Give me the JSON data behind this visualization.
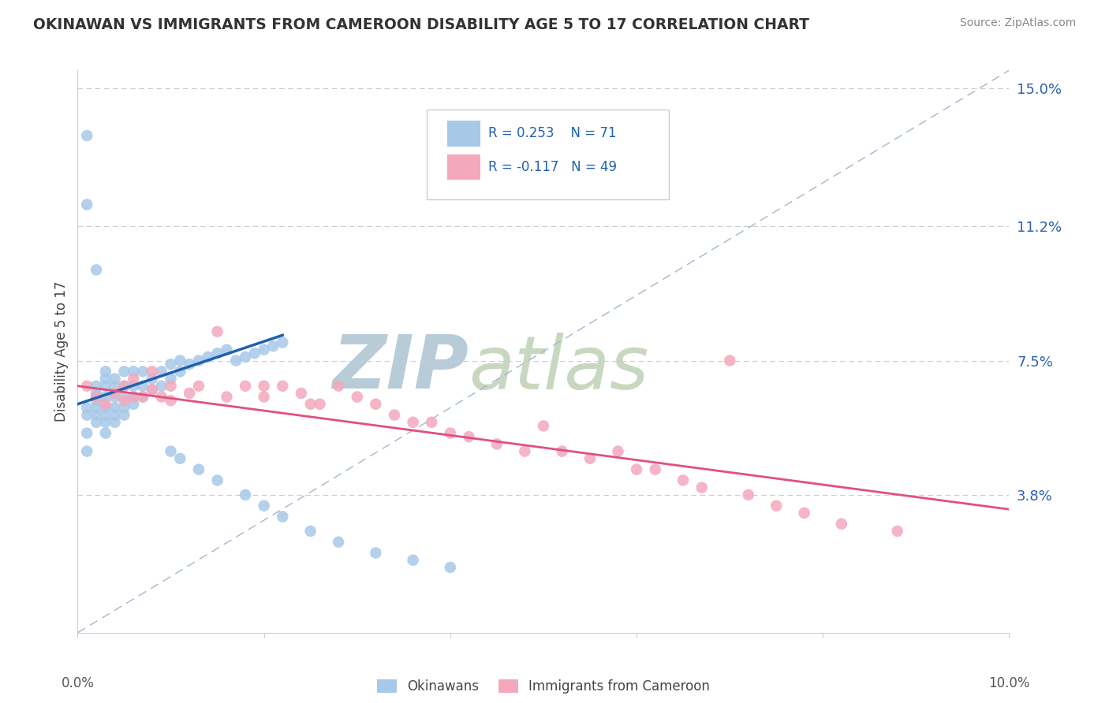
{
  "title": "OKINAWAN VS IMMIGRANTS FROM CAMEROON DISABILITY AGE 5 TO 17 CORRELATION CHART",
  "source": "Source: ZipAtlas.com",
  "ylabel": "Disability Age 5 to 17",
  "xlim": [
    0.0,
    0.1
  ],
  "ylim": [
    0.0,
    0.155
  ],
  "ytick_positions": [
    0.038,
    0.075,
    0.112,
    0.15
  ],
  "ytick_labels": [
    "3.8%",
    "7.5%",
    "11.2%",
    "15.0%"
  ],
  "R_blue": 0.253,
  "N_blue": 71,
  "R_pink": -0.117,
  "N_pink": 49,
  "blue_color": "#a8c8e8",
  "pink_color": "#f4a8bc",
  "blue_line_color": "#2060b0",
  "pink_line_color": "#e05080",
  "diag_line_color": "#a0b8d0",
  "watermark_color": "#ccdde8",
  "blue_scatter_x": [
    0.001,
    0.001,
    0.001,
    0.001,
    0.002,
    0.002,
    0.002,
    0.002,
    0.002,
    0.002,
    0.002,
    0.003,
    0.003,
    0.003,
    0.003,
    0.003,
    0.003,
    0.003,
    0.003,
    0.004,
    0.004,
    0.004,
    0.004,
    0.004,
    0.004,
    0.005,
    0.005,
    0.005,
    0.005,
    0.005,
    0.006,
    0.006,
    0.006,
    0.006,
    0.007,
    0.007,
    0.007,
    0.008,
    0.008,
    0.009,
    0.009,
    0.01,
    0.01,
    0.011,
    0.011,
    0.012,
    0.013,
    0.014,
    0.015,
    0.016,
    0.017,
    0.018,
    0.019,
    0.02,
    0.021,
    0.022,
    0.01,
    0.011,
    0.013,
    0.015,
    0.018,
    0.02,
    0.022,
    0.025,
    0.028,
    0.032,
    0.036,
    0.04,
    0.001,
    0.001,
    0.002
  ],
  "blue_scatter_y": [
    0.05,
    0.055,
    0.06,
    0.062,
    0.058,
    0.06,
    0.062,
    0.064,
    0.065,
    0.066,
    0.068,
    0.055,
    0.058,
    0.06,
    0.062,
    0.065,
    0.068,
    0.07,
    0.072,
    0.058,
    0.06,
    0.062,
    0.065,
    0.068,
    0.07,
    0.06,
    0.062,
    0.065,
    0.068,
    0.072,
    0.063,
    0.065,
    0.068,
    0.072,
    0.065,
    0.068,
    0.072,
    0.067,
    0.07,
    0.068,
    0.072,
    0.07,
    0.074,
    0.072,
    0.075,
    0.074,
    0.075,
    0.076,
    0.077,
    0.078,
    0.075,
    0.076,
    0.077,
    0.078,
    0.079,
    0.08,
    0.05,
    0.048,
    0.045,
    0.042,
    0.038,
    0.035,
    0.032,
    0.028,
    0.025,
    0.022,
    0.02,
    0.018,
    0.137,
    0.118,
    0.1
  ],
  "pink_scatter_x": [
    0.001,
    0.002,
    0.003,
    0.004,
    0.005,
    0.005,
    0.006,
    0.006,
    0.007,
    0.008,
    0.008,
    0.009,
    0.01,
    0.01,
    0.012,
    0.013,
    0.015,
    0.016,
    0.018,
    0.02,
    0.02,
    0.022,
    0.024,
    0.025,
    0.026,
    0.028,
    0.03,
    0.032,
    0.034,
    0.036,
    0.038,
    0.04,
    0.042,
    0.045,
    0.048,
    0.05,
    0.052,
    0.055,
    0.058,
    0.06,
    0.062,
    0.065,
    0.067,
    0.07,
    0.072,
    0.075,
    0.078,
    0.082,
    0.088
  ],
  "pink_scatter_y": [
    0.068,
    0.065,
    0.063,
    0.066,
    0.064,
    0.068,
    0.065,
    0.07,
    0.065,
    0.067,
    0.072,
    0.065,
    0.064,
    0.068,
    0.066,
    0.068,
    0.083,
    0.065,
    0.068,
    0.065,
    0.068,
    0.068,
    0.066,
    0.063,
    0.063,
    0.068,
    0.065,
    0.063,
    0.06,
    0.058,
    0.058,
    0.055,
    0.054,
    0.052,
    0.05,
    0.057,
    0.05,
    0.048,
    0.05,
    0.045,
    0.045,
    0.042,
    0.04,
    0.075,
    0.038,
    0.035,
    0.033,
    0.03,
    0.028
  ],
  "blue_line_x": [
    0.0,
    0.022
  ],
  "blue_line_y": [
    0.063,
    0.082
  ],
  "pink_line_x": [
    0.0,
    0.1
  ],
  "pink_line_y": [
    0.068,
    0.034
  ]
}
